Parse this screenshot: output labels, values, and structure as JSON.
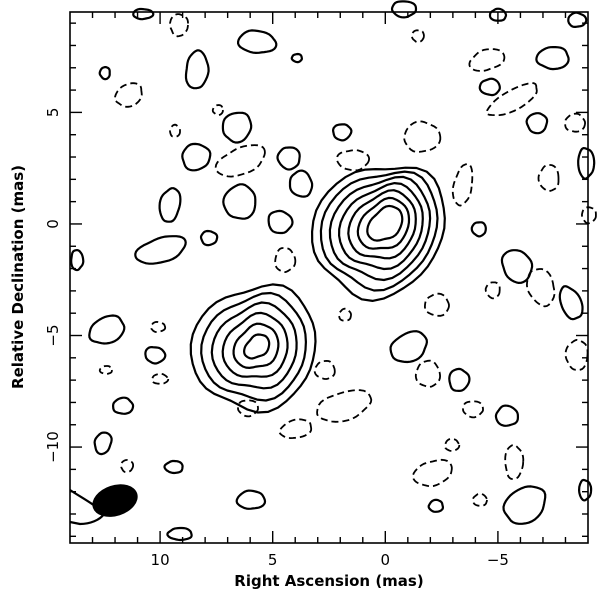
{
  "chart_data": {
    "type": "contour",
    "xlabel": "Right Ascension  (mas)",
    "ylabel": "Relative Declination  (mas)",
    "xlim": [
      14,
      -9
    ],
    "ylim": [
      -14.3,
      9.5
    ],
    "x_ticks": [
      10,
      5,
      0,
      -5
    ],
    "x_tick_labels": [
      "10",
      "5",
      "0",
      "−5"
    ],
    "y_ticks": [
      5,
      0,
      -5,
      -10
    ],
    "y_tick_labels": [
      "5",
      "0",
      "−5",
      "−10"
    ],
    "x_axis_reversed": true,
    "grid": false,
    "components": [
      {
        "center": [
          0,
          0
        ],
        "contour_levels": 7
      },
      {
        "center": [
          5.7,
          -5.5
        ],
        "contour_levels": 6
      }
    ],
    "beam": {
      "center": [
        12,
        -12.4
      ],
      "major": 1.8,
      "minor": 1.2
    }
  }
}
